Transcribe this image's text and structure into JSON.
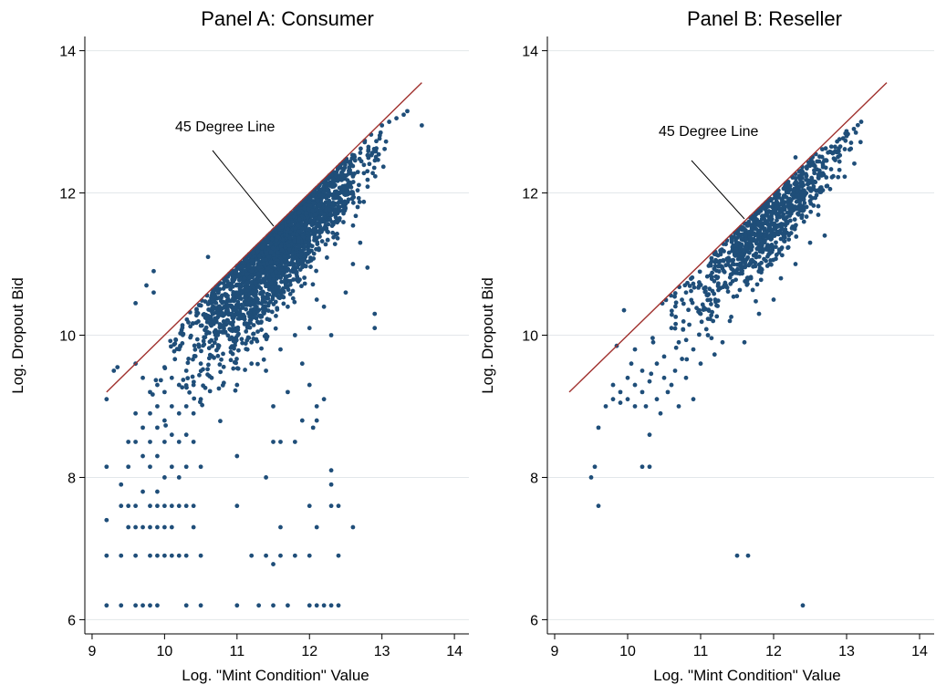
{
  "chart_data": [
    {
      "type": "scatter",
      "title": "Panel A: Consumer",
      "xlabel": "Log. \"Mint Condition\" Value",
      "ylabel": "Log. Dropout Bid",
      "xlim": [
        8.9,
        14.2
      ],
      "ylim": [
        5.8,
        14.2
      ],
      "xticks": [
        9,
        10,
        11,
        12,
        13,
        14
      ],
      "yticks": [
        6,
        8,
        10,
        12,
        14
      ],
      "grid": "horizontal",
      "marker_color": "#1f4e79",
      "reference_line": {
        "label": "45 Degree Line",
        "x": [
          9.2,
          13.55
        ],
        "y": [
          9.2,
          13.55
        ],
        "color": "#a0312e"
      },
      "cluster": {
        "x_min": 9.7,
        "x_max": 13.1,
        "x_mean": 11.6,
        "offset_mean": 0.35,
        "spread": 0.42,
        "n": 2400
      },
      "points": [
        [
          9.2,
          9.1
        ],
        [
          9.2,
          8.15
        ],
        [
          9.2,
          7.4
        ],
        [
          9.2,
          6.9
        ],
        [
          9.2,
          6.2
        ],
        [
          9.3,
          9.5
        ],
        [
          9.35,
          9.55
        ],
        [
          9.4,
          7.9
        ],
        [
          9.4,
          7.6
        ],
        [
          9.4,
          6.9
        ],
        [
          9.4,
          6.2
        ],
        [
          9.5,
          8.5
        ],
        [
          9.5,
          8.15
        ],
        [
          9.5,
          7.6
        ],
        [
          9.5,
          7.3
        ],
        [
          9.6,
          9.6
        ],
        [
          9.6,
          10.45
        ],
        [
          9.6,
          8.9
        ],
        [
          9.6,
          8.5
        ],
        [
          9.6,
          7.6
        ],
        [
          9.6,
          7.3
        ],
        [
          9.6,
          6.9
        ],
        [
          9.6,
          6.2
        ],
        [
          9.7,
          9.4
        ],
        [
          9.7,
          8.7
        ],
        [
          9.7,
          8.3
        ],
        [
          9.7,
          7.8
        ],
        [
          9.7,
          7.3
        ],
        [
          9.7,
          6.2
        ],
        [
          9.75,
          10.7
        ],
        [
          9.8,
          9.2
        ],
        [
          9.8,
          8.9
        ],
        [
          9.8,
          8.5
        ],
        [
          9.8,
          8.15
        ],
        [
          9.8,
          7.6
        ],
        [
          9.8,
          7.3
        ],
        [
          9.8,
          6.9
        ],
        [
          9.8,
          6.2
        ],
        [
          9.85,
          10.9
        ],
        [
          9.85,
          10.6
        ],
        [
          9.9,
          9.3
        ],
        [
          9.9,
          9.0
        ],
        [
          9.9,
          8.7
        ],
        [
          9.9,
          8.3
        ],
        [
          9.9,
          7.8
        ],
        [
          9.9,
          7.6
        ],
        [
          9.9,
          7.3
        ],
        [
          9.9,
          6.9
        ],
        [
          9.9,
          6.2
        ],
        [
          10.0,
          9.55
        ],
        [
          10.0,
          9.2
        ],
        [
          10.0,
          8.8
        ],
        [
          10.0,
          8.5
        ],
        [
          10.0,
          8.0
        ],
        [
          10.0,
          7.6
        ],
        [
          10.0,
          7.3
        ],
        [
          10.0,
          6.9
        ],
        [
          10.1,
          9.4
        ],
        [
          10.1,
          9.0
        ],
        [
          10.1,
          8.6
        ],
        [
          10.1,
          8.15
        ],
        [
          10.1,
          7.6
        ],
        [
          10.1,
          7.3
        ],
        [
          10.1,
          6.9
        ],
        [
          10.2,
          9.3
        ],
        [
          10.2,
          8.9
        ],
        [
          10.2,
          8.5
        ],
        [
          10.2,
          8.0
        ],
        [
          10.2,
          7.6
        ],
        [
          10.2,
          6.9
        ],
        [
          10.3,
          9.5
        ],
        [
          10.3,
          9.0
        ],
        [
          10.3,
          8.6
        ],
        [
          10.3,
          8.15
        ],
        [
          10.3,
          7.6
        ],
        [
          10.3,
          6.9
        ],
        [
          10.3,
          6.2
        ],
        [
          10.4,
          9.3
        ],
        [
          10.4,
          8.9
        ],
        [
          10.4,
          8.5
        ],
        [
          10.4,
          7.6
        ],
        [
          10.4,
          7.3
        ],
        [
          10.5,
          9.6
        ],
        [
          10.5,
          9.1
        ],
        [
          10.5,
          8.15
        ],
        [
          10.5,
          6.9
        ],
        [
          10.5,
          6.2
        ],
        [
          10.6,
          11.1
        ],
        [
          10.65,
          9.4
        ],
        [
          10.75,
          9.25
        ],
        [
          10.9,
          10.3
        ],
        [
          11.0,
          9.3
        ],
        [
          11.0,
          8.3
        ],
        [
          11.0,
          7.6
        ],
        [
          11.0,
          6.2
        ],
        [
          11.1,
          10.8
        ],
        [
          11.2,
          9.9
        ],
        [
          11.2,
          9.6
        ],
        [
          11.2,
          6.9
        ],
        [
          11.3,
          11.25
        ],
        [
          11.3,
          6.2
        ],
        [
          11.4,
          9.5
        ],
        [
          11.4,
          8.0
        ],
        [
          11.4,
          6.9
        ],
        [
          11.5,
          10.6
        ],
        [
          11.5,
          9.0
        ],
        [
          11.5,
          8.5
        ],
        [
          11.5,
          6.78
        ],
        [
          11.5,
          6.2
        ],
        [
          11.6,
          9.8
        ],
        [
          11.6,
          8.5
        ],
        [
          11.6,
          7.3
        ],
        [
          11.6,
          6.9
        ],
        [
          11.7,
          10.4
        ],
        [
          11.7,
          9.2
        ],
        [
          11.7,
          6.2
        ],
        [
          11.8,
          10.0
        ],
        [
          11.8,
          8.5
        ],
        [
          11.8,
          6.9
        ],
        [
          11.9,
          9.6
        ],
        [
          11.9,
          8.8
        ],
        [
          12.0,
          10.1
        ],
        [
          12.0,
          9.3
        ],
        [
          12.0,
          7.6
        ],
        [
          12.0,
          6.9
        ],
        [
          12.0,
          6.2
        ],
        [
          12.05,
          8.7
        ],
        [
          12.1,
          10.5
        ],
        [
          12.1,
          9.0
        ],
        [
          12.1,
          8.8
        ],
        [
          12.1,
          7.3
        ],
        [
          12.1,
          6.2
        ],
        [
          12.2,
          10.4
        ],
        [
          12.2,
          9.1
        ],
        [
          12.2,
          6.2
        ],
        [
          12.3,
          10.0
        ],
        [
          12.3,
          8.1
        ],
        [
          12.3,
          7.9
        ],
        [
          12.3,
          7.6
        ],
        [
          12.3,
          6.2
        ],
        [
          12.4,
          7.6
        ],
        [
          12.4,
          6.9
        ],
        [
          12.4,
          6.2
        ],
        [
          12.5,
          10.6
        ],
        [
          12.6,
          11.0
        ],
        [
          12.6,
          7.3
        ],
        [
          12.7,
          11.3
        ],
        [
          12.8,
          10.95
        ],
        [
          12.9,
          10.3
        ],
        [
          12.9,
          10.1
        ],
        [
          13.0,
          12.95
        ],
        [
          13.1,
          13.0
        ],
        [
          13.2,
          13.05
        ],
        [
          13.3,
          13.1
        ],
        [
          13.35,
          13.15
        ],
        [
          13.55,
          12.95
        ]
      ]
    },
    {
      "type": "scatter",
      "title": "Panel B: Reseller",
      "xlabel": "Log. \"Mint Condition\" Value",
      "ylabel": "Log. Dropout Bid",
      "xlim": [
        8.9,
        14.2
      ],
      "ylim": [
        5.8,
        14.2
      ],
      "xticks": [
        9,
        10,
        11,
        12,
        13,
        14
      ],
      "yticks": [
        6,
        8,
        10,
        12,
        14
      ],
      "grid": "horizontal",
      "marker_color": "#1f4e79",
      "reference_line": {
        "label": "45 Degree Line",
        "x": [
          9.2,
          13.55
        ],
        "y": [
          9.2,
          13.55
        ],
        "color": "#a0312e"
      },
      "cluster": {
        "x_min": 10.2,
        "x_max": 13.2,
        "x_mean": 11.9,
        "offset_mean": 0.38,
        "spread": 0.28,
        "n": 900
      },
      "points": [
        [
          9.5,
          8.0
        ],
        [
          9.55,
          8.15
        ],
        [
          9.6,
          8.7
        ],
        [
          9.6,
          7.6
        ],
        [
          9.7,
          9.0
        ],
        [
          9.8,
          9.1
        ],
        [
          9.8,
          9.3
        ],
        [
          9.85,
          9.85
        ],
        [
          9.9,
          9.2
        ],
        [
          9.9,
          9.05
        ],
        [
          9.95,
          10.35
        ],
        [
          10.0,
          9.4
        ],
        [
          10.0,
          9.1
        ],
        [
          10.05,
          9.6
        ],
        [
          10.1,
          9.3
        ],
        [
          10.1,
          9.0
        ],
        [
          10.1,
          9.8
        ],
        [
          10.2,
          9.2
        ],
        [
          10.2,
          9.5
        ],
        [
          10.2,
          8.15
        ],
        [
          10.25,
          9.0
        ],
        [
          10.3,
          8.15
        ],
        [
          10.3,
          9.35
        ],
        [
          10.3,
          8.6
        ],
        [
          10.35,
          9.9
        ],
        [
          10.4,
          9.1
        ],
        [
          10.4,
          9.6
        ],
        [
          10.45,
          8.9
        ],
        [
          10.5,
          9.4
        ],
        [
          10.5,
          9.7
        ],
        [
          10.55,
          9.2
        ],
        [
          10.6,
          10.1
        ],
        [
          10.6,
          9.3
        ],
        [
          10.65,
          9.5
        ],
        [
          10.7,
          9.0
        ],
        [
          10.7,
          9.9
        ],
        [
          10.8,
          9.4
        ],
        [
          10.8,
          10.6
        ],
        [
          10.9,
          9.8
        ],
        [
          10.9,
          9.1
        ],
        [
          11.0,
          10.3
        ],
        [
          11.0,
          9.6
        ],
        [
          11.1,
          10.0
        ],
        [
          11.2,
          10.5
        ],
        [
          11.3,
          9.9
        ],
        [
          11.4,
          10.2
        ],
        [
          11.5,
          6.9
        ],
        [
          11.65,
          6.9
        ],
        [
          11.6,
          9.9
        ],
        [
          11.8,
          10.3
        ],
        [
          12.0,
          10.5
        ],
        [
          12.1,
          10.8
        ],
        [
          12.3,
          12.5
        ],
        [
          12.3,
          11.0
        ],
        [
          12.4,
          6.2
        ],
        [
          12.5,
          11.3
        ],
        [
          12.7,
          11.4
        ],
        [
          13.0,
          12.8
        ],
        [
          13.1,
          12.9
        ],
        [
          13.2,
          13.0
        ]
      ]
    }
  ]
}
